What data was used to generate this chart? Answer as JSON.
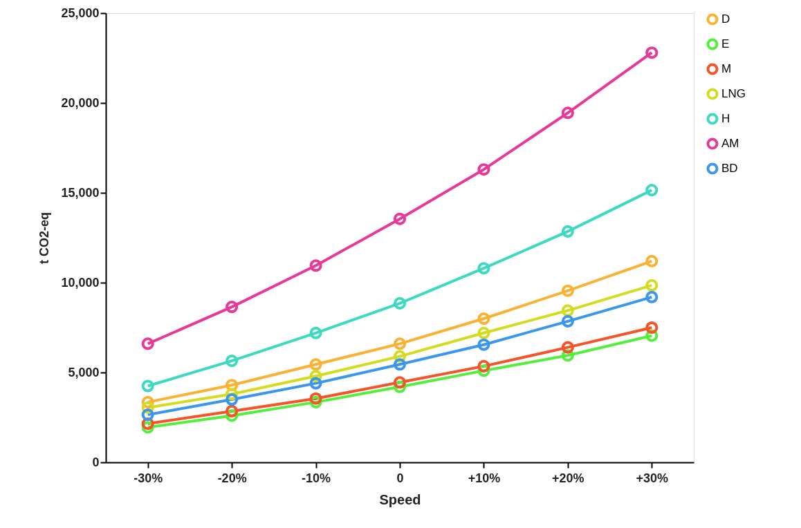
{
  "chart_data": {
    "type": "line",
    "xlabel": "Speed",
    "ylabel": "t CO2-eq",
    "categories": [
      "-30%",
      "-20%",
      "-10%",
      "0",
      "+10%",
      "+20%",
      "+30%"
    ],
    "ylim": [
      0,
      25000
    ],
    "yticks": [
      {
        "value": 0,
        "label": "0"
      },
      {
        "value": 5000,
        "label": "5,000"
      },
      {
        "value": 10000,
        "label": "10,000"
      },
      {
        "value": 15000,
        "label": "15,000"
      },
      {
        "value": 20000,
        "label": "20,000"
      },
      {
        "value": 25000,
        "label": "25,000"
      }
    ],
    "grid": false,
    "legend": "top right",
    "marker": "circle",
    "line_style": "solid",
    "series": [
      {
        "name": "D",
        "color": "#f9b233",
        "values": [
          3350,
          4300,
          5450,
          6600,
          8000,
          9550,
          11200
        ]
      },
      {
        "name": "E",
        "color": "#55ee3f",
        "values": [
          1950,
          2600,
          3350,
          4200,
          5100,
          5950,
          7050
        ]
      },
      {
        "name": "M",
        "color": "#f5532a",
        "values": [
          2150,
          2850,
          3550,
          4450,
          5350,
          6400,
          7500
        ]
      },
      {
        "name": "LNG",
        "color": "#d4dc22",
        "values": [
          3050,
          3800,
          4800,
          5900,
          7200,
          8450,
          9850
        ]
      },
      {
        "name": "H",
        "color": "#3dd9c1",
        "values": [
          4250,
          5650,
          7200,
          8850,
          10800,
          12850,
          15150
        ]
      },
      {
        "name": "AM",
        "color": "#e63a9b",
        "values": [
          6600,
          8650,
          10950,
          13550,
          16300,
          19450,
          22800
        ]
      },
      {
        "name": "BD",
        "color": "#3a97ec",
        "values": [
          2650,
          3500,
          4400,
          5450,
          6550,
          7850,
          9200
        ]
      }
    ]
  }
}
